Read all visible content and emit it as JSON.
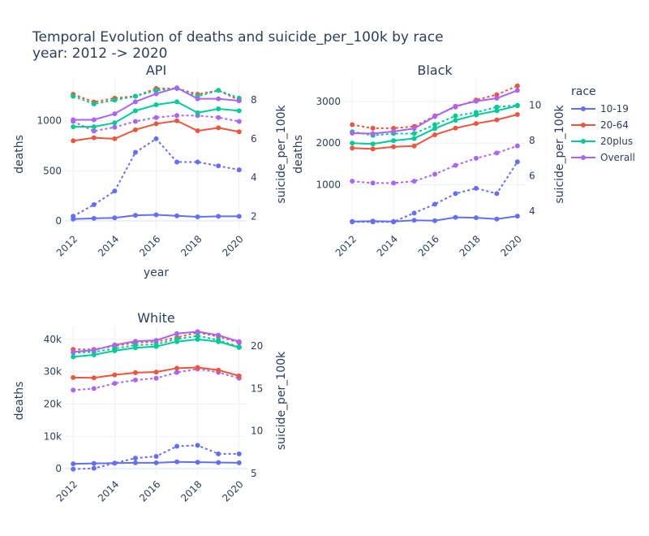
{
  "title_line1": "Temporal Evolution of deaths and suicide_per_100k by race",
  "title_line2": "year: 2012 -> 2020",
  "legend_title": "race",
  "colors": {
    "10-19": "#636efa",
    "20-64": "#EF553B",
    "20plus": "#00cc96",
    "Overall": "#ab63fa"
  },
  "chart_data": [
    {
      "type": "line",
      "title": "API",
      "xlabel": "year",
      "ylabel": "deaths",
      "y2label": "suicide_per_100k",
      "x": [
        2012,
        2013,
        2014,
        2015,
        2016,
        2017,
        2018,
        2019,
        2020
      ],
      "xticks": [
        2012,
        2014,
        2016,
        2018,
        2020
      ],
      "ylim": [
        -90,
        1420
      ],
      "yticks": [
        0,
        500,
        1000
      ],
      "yticklabels": [
        "0",
        "500",
        "1000"
      ],
      "y2lim": [
        1.3,
        9.1
      ],
      "y2ticks": [
        2,
        4,
        6,
        8
      ],
      "deaths": [
        {
          "name": "10-19",
          "values": [
            18,
            25,
            30,
            55,
            60,
            50,
            40,
            45,
            45
          ]
        },
        {
          "name": "20-64",
          "values": [
            800,
            830,
            820,
            910,
            970,
            1000,
            900,
            930,
            890
          ]
        },
        {
          "name": "20plus",
          "values": [
            940,
            940,
            980,
            1100,
            1160,
            1190,
            1080,
            1120,
            1100
          ]
        },
        {
          "name": "Overall",
          "values": [
            1010,
            1010,
            1070,
            1190,
            1270,
            1330,
            1220,
            1220,
            1200
          ]
        }
      ],
      "suicide_per_100k": [
        {
          "name": "10-19",
          "values": [
            2.0,
            2.6,
            3.3,
            5.3,
            6.0,
            4.8,
            4.8,
            4.6,
            4.4
          ]
        },
        {
          "name": "20-64",
          "values": [
            8.3,
            7.9,
            8.1,
            8.2,
            8.6,
            8.6,
            8.3,
            8.5,
            8.0
          ]
        },
        {
          "name": "20plus",
          "values": [
            8.2,
            7.8,
            8.0,
            8.2,
            8.5,
            8.6,
            8.2,
            8.5,
            8.1
          ]
        },
        {
          "name": "Overall",
          "values": [
            6.9,
            6.4,
            6.6,
            6.9,
            7.1,
            7.2,
            7.2,
            7.1,
            6.9
          ]
        }
      ]
    },
    {
      "type": "line",
      "title": "Black",
      "xlabel": "",
      "ylabel": "deaths",
      "y2label": "suicide_per_100k",
      "x": [
        2012,
        2013,
        2014,
        2015,
        2016,
        2017,
        2018,
        2019,
        2020
      ],
      "xticks": [
        2012,
        2014,
        2016,
        2018,
        2020
      ],
      "ylim": [
        -90,
        3550
      ],
      "yticks": [
        1000,
        2000,
        3000
      ],
      "yticklabels": [
        "1000",
        "2000",
        "3000"
      ],
      "y2lim": [
        2.95,
        11.5
      ],
      "y2ticks": [
        4,
        6,
        8,
        10
      ],
      "deaths": [
        {
          "name": "10-19",
          "values": [
            110,
            120,
            110,
            140,
            130,
            210,
            200,
            170,
            240
          ]
        },
        {
          "name": "20-64",
          "values": [
            1880,
            1860,
            1910,
            1930,
            2200,
            2360,
            2470,
            2560,
            2690
          ]
        },
        {
          "name": "20plus",
          "values": [
            2000,
            1980,
            2060,
            2110,
            2350,
            2550,
            2680,
            2780,
            2900
          ]
        },
        {
          "name": "Overall",
          "values": [
            2240,
            2230,
            2280,
            2350,
            2640,
            2890,
            3010,
            3080,
            3270
          ]
        }
      ],
      "suicide_per_100k": [
        {
          "name": "10-19",
          "values": [
            3.4,
            3.4,
            3.4,
            3.9,
            4.4,
            5.0,
            5.3,
            5.0,
            6.8
          ]
        },
        {
          "name": "20-64",
          "values": [
            8.9,
            8.7,
            8.7,
            8.8,
            9.4,
            9.9,
            10.3,
            10.6,
            11.1
          ]
        },
        {
          "name": "20plus",
          "values": [
            8.5,
            8.3,
            8.4,
            8.4,
            8.9,
            9.4,
            9.6,
            9.9,
            10.0
          ]
        },
        {
          "name": "Overall",
          "values": [
            5.7,
            5.6,
            5.6,
            5.7,
            6.1,
            6.6,
            7.0,
            7.3,
            7.7
          ]
        }
      ]
    },
    {
      "type": "line",
      "title": "White",
      "xlabel": "",
      "ylabel": "deaths",
      "y2label": "suicide_per_100k",
      "x": [
        2012,
        2013,
        2014,
        2015,
        2016,
        2017,
        2018,
        2019,
        2020
      ],
      "xticks": [
        2012,
        2014,
        2016,
        2018,
        2020
      ],
      "ylim": [
        -2000,
        44000
      ],
      "yticks": [
        0,
        10000,
        20000,
        30000,
        40000
      ],
      "yticklabels": [
        "0",
        "10k",
        "20k",
        "30k",
        "40k"
      ],
      "y2lim": [
        4.8,
        22.3
      ],
      "y2ticks": [
        5,
        10,
        15,
        20
      ],
      "deaths": [
        {
          "name": "10-19",
          "values": [
            1500,
            1600,
            1700,
            1800,
            1800,
            2100,
            2000,
            1900,
            1800
          ]
        },
        {
          "name": "20-64",
          "values": [
            28200,
            28100,
            29000,
            29700,
            29900,
            31100,
            31300,
            30500,
            28700
          ]
        },
        {
          "name": "20plus",
          "values": [
            34600,
            35200,
            36500,
            37400,
            37800,
            39300,
            40000,
            39300,
            37500
          ]
        },
        {
          "name": "Overall",
          "values": [
            36100,
            36700,
            38300,
            39400,
            39700,
            41800,
            42400,
            41300,
            39300
          ]
        }
      ],
      "suicide_per_100k": [
        {
          "name": "10-19",
          "values": [
            5.5,
            5.6,
            6.2,
            6.8,
            7.0,
            8.2,
            8.3,
            7.3,
            7.3
          ]
        },
        {
          "name": "20-64",
          "values": [
            19.6,
            19.6,
            20.0,
            20.4,
            20.5,
            21.0,
            21.6,
            21.1,
            20.4
          ]
        },
        {
          "name": "20plus",
          "values": [
            19.2,
            19.3,
            19.7,
            20.1,
            20.2,
            20.8,
            21.2,
            20.7,
            19.9
          ]
        },
        {
          "name": "Overall",
          "values": [
            14.8,
            15.0,
            15.6,
            16.0,
            16.2,
            16.9,
            17.3,
            16.9,
            16.2
          ]
        }
      ]
    }
  ]
}
